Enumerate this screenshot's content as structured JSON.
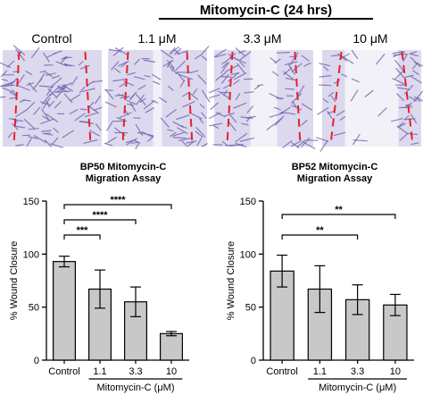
{
  "header": {
    "treatment_label": "Mitomycin-C (24 hrs)",
    "conditions": [
      "Control",
      "1.1 μM",
      "3.3 μM",
      "10 μM"
    ]
  },
  "micrographs": [
    {
      "condition": "Control",
      "gap": "closed"
    },
    {
      "condition": "1.1 μM",
      "gap": "narrow"
    },
    {
      "condition": "3.3 μM",
      "gap": "medium"
    },
    {
      "condition": "10 μM",
      "gap": "wide"
    }
  ],
  "colors": {
    "bar_fill": "#c8c8c8",
    "stroke": "#000000",
    "wound_edge": "#e8202a",
    "cell_stain": "#6b5ca8",
    "background_stain": "#dcd8ee"
  },
  "chart_data": [
    {
      "type": "bar",
      "title": "BP50 Mitomycin-C Migration Assay",
      "categories": [
        "Control",
        "1.1",
        "3.3",
        "10"
      ],
      "values": [
        93,
        67,
        55,
        25
      ],
      "error": [
        5,
        18,
        14,
        2
      ],
      "ylabel": "% Wound Closure",
      "xlabel": "Mitomycin-C (μM)",
      "ylim": [
        0,
        150
      ],
      "yticks": [
        "0",
        "50",
        "100",
        "150"
      ],
      "significance": [
        {
          "from": "Control",
          "to": "1.1",
          "label": "***"
        },
        {
          "from": "Control",
          "to": "3.3",
          "label": "****"
        },
        {
          "from": "Control",
          "to": "10",
          "label": "****"
        }
      ]
    },
    {
      "type": "bar",
      "title": "BP52 Mitomycin-C Migration Assay",
      "categories": [
        "Control",
        "1.1",
        "3.3",
        "10"
      ],
      "values": [
        84,
        67,
        57,
        52
      ],
      "error": [
        15,
        22,
        14,
        10
      ],
      "ylabel": "% Wound Closure",
      "xlabel": "Mitomycin-C (μM)",
      "ylim": [
        0,
        150
      ],
      "yticks": [
        "0",
        "50",
        "100",
        "150"
      ],
      "significance": [
        {
          "from": "Control",
          "to": "3.3",
          "label": "**"
        },
        {
          "from": "Control",
          "to": "10",
          "label": "**"
        }
      ]
    }
  ]
}
